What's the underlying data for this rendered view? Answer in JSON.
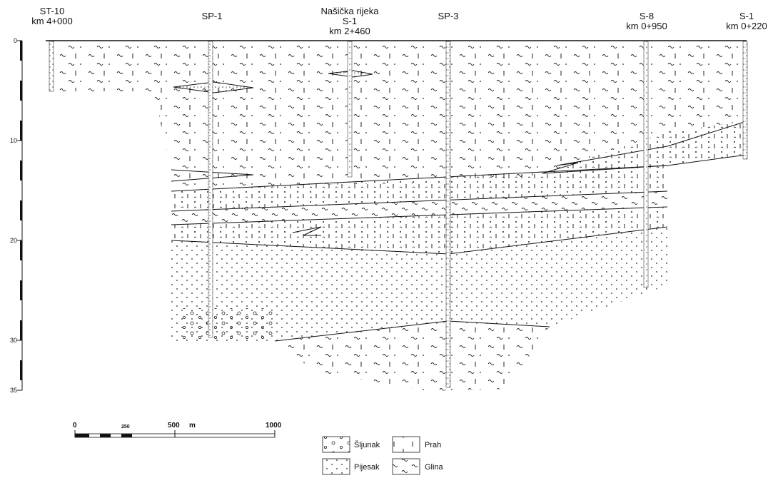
{
  "boreholes": [
    {
      "name": "ST-10",
      "km": "km 4+000"
    },
    {
      "name": "SP-1",
      "km": ""
    },
    {
      "river": "Našička rijeka",
      "name": "S-1",
      "km": "km 2+460"
    },
    {
      "name": "SP-3",
      "km": ""
    },
    {
      "name": "S-8",
      "km": "km 0+950"
    },
    {
      "name": "S-1",
      "km": "km 0+220"
    }
  ],
  "depth_axis": {
    "ticks": [
      "0",
      "10",
      "20",
      "30",
      "35"
    ]
  },
  "scale_bar": {
    "labels": [
      "0",
      "250",
      "500",
      "m",
      "1000"
    ]
  },
  "legend": [
    {
      "label": "Šljunak",
      "pattern": "circles"
    },
    {
      "label": "Prah",
      "pattern": "vertical-dashes"
    },
    {
      "label": "Pijesak",
      "pattern": "dots"
    },
    {
      "label": "Glina",
      "pattern": "tildes"
    }
  ]
}
